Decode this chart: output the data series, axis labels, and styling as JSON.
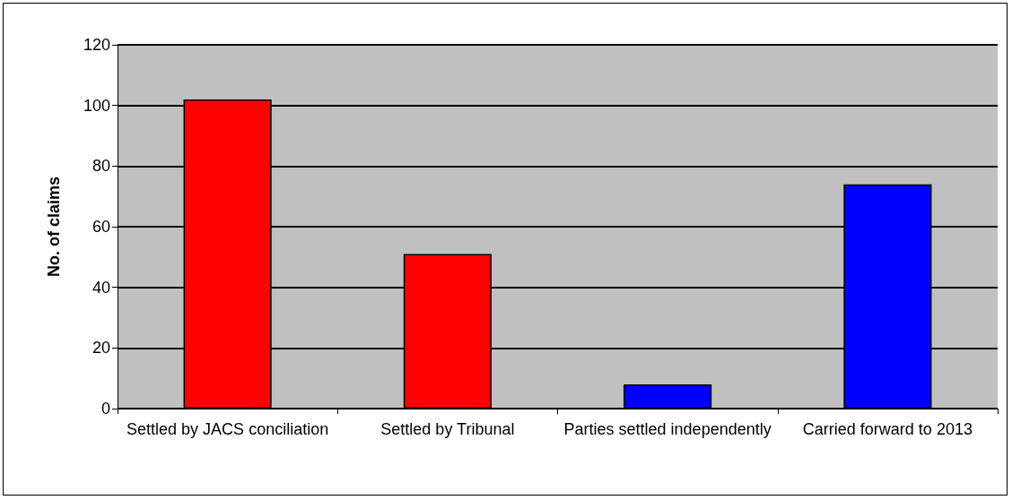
{
  "chart_data": {
    "type": "bar",
    "ylabel": "No. of claims",
    "categories": [
      "Settled by JACS conciliation",
      "Settled by Tribunal",
      "Parties settled independently",
      "Carried forward to 2013"
    ],
    "values": [
      102,
      51,
      8,
      74
    ],
    "colors": [
      "#ff0000",
      "#ff0000",
      "#0000ff",
      "#0000ff"
    ],
    "ylim": [
      0,
      120
    ],
    "yticks": [
      0,
      20,
      40,
      60,
      80,
      100,
      120
    ],
    "grid": "y"
  }
}
